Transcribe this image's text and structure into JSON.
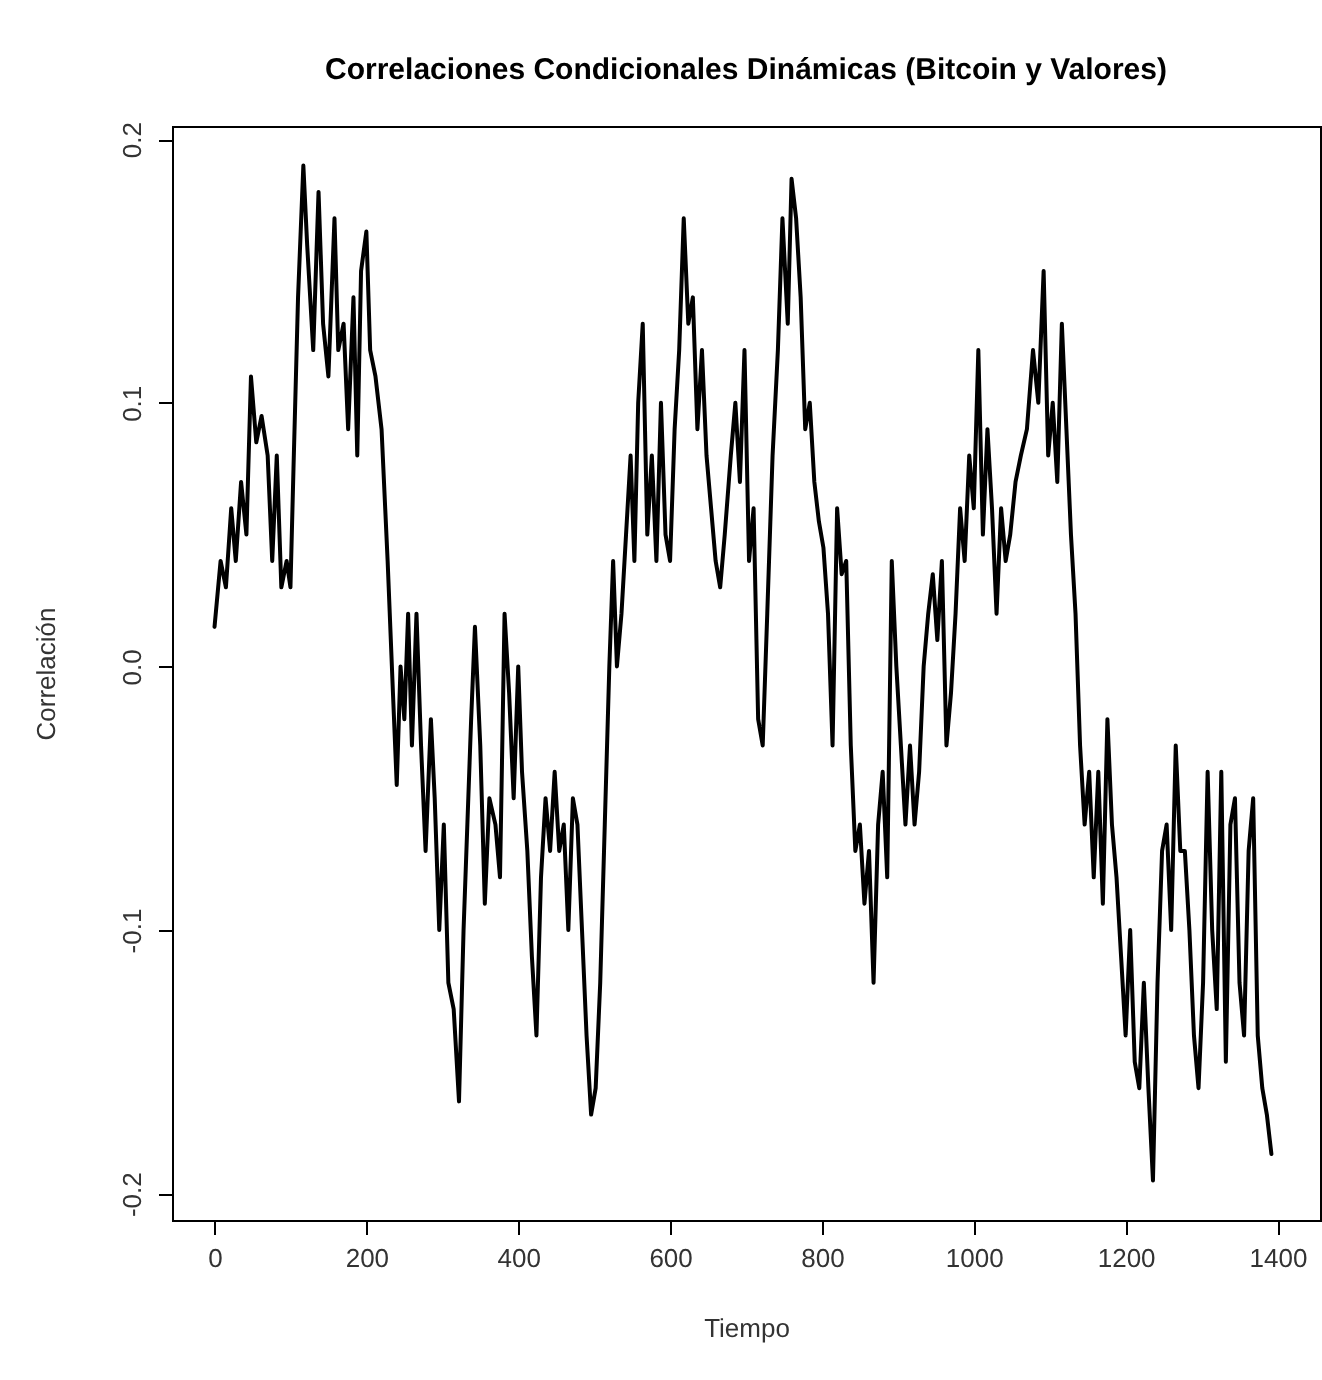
{
  "chart_data": {
    "type": "line",
    "title": "Correlaciones Condicionales Dinámicas (Bitcoin y Valores)",
    "xlabel": "Tiempo",
    "ylabel": "Correlación",
    "xlim": [
      -56,
      1456
    ],
    "xticks": [
      0,
      200,
      400,
      600,
      800,
      1000,
      1200,
      1400
    ],
    "ylim": [
      -0.21,
      0.205
    ],
    "yticks": [
      {
        "value": -0.2,
        "label": "-0.2"
      },
      {
        "value": -0.1,
        "label": "-0.1"
      },
      {
        "value": 0,
        "label": "0.0"
      },
      {
        "value": 0.1,
        "label": "0.1"
      },
      {
        "value": 0.2,
        "label": "0.2"
      }
    ],
    "marker": "none",
    "line_style": "solid",
    "x": [
      0,
      8,
      15,
      22,
      28,
      35,
      42,
      48,
      55,
      62,
      70,
      76,
      82,
      88,
      95,
      100,
      104,
      110,
      117,
      122,
      130,
      137,
      143,
      150,
      158,
      163,
      170,
      176,
      183,
      188,
      193,
      200,
      205,
      212,
      220,
      228,
      235,
      240,
      245,
      250,
      255,
      260,
      266,
      272,
      278,
      285,
      290,
      296,
      302,
      308,
      315,
      322,
      328,
      333,
      338,
      343,
      350,
      356,
      362,
      370,
      376,
      382,
      388,
      394,
      400,
      405,
      412,
      418,
      424,
      430,
      436,
      442,
      448,
      454,
      460,
      466,
      472,
      478,
      484,
      490,
      496,
      502,
      508,
      514,
      520,
      525,
      530,
      536,
      542,
      548,
      553,
      558,
      564,
      570,
      576,
      582,
      588,
      594,
      600,
      606,
      612,
      618,
      624,
      630,
      636,
      642,
      648,
      654,
      660,
      666,
      672,
      680,
      686,
      692,
      698,
      704,
      710,
      716,
      722,
      728,
      735,
      742,
      748,
      755,
      760,
      766,
      772,
      778,
      784,
      790,
      796,
      802,
      808,
      814,
      820,
      826,
      832,
      838,
      844,
      850,
      856,
      862,
      868,
      874,
      880,
      886,
      892,
      898,
      904,
      910,
      916,
      922,
      928,
      934,
      940,
      946,
      952,
      958,
      964,
      970,
      976,
      982,
      988,
      994,
      1000,
      1006,
      1012,
      1018,
      1024,
      1030,
      1036,
      1042,
      1048,
      1055,
      1062,
      1070,
      1078,
      1085,
      1092,
      1098,
      1104,
      1110,
      1116,
      1122,
      1128,
      1134,
      1140,
      1146,
      1152,
      1158,
      1164,
      1170,
      1176,
      1182,
      1188,
      1194,
      1200,
      1206,
      1212,
      1218,
      1224,
      1230,
      1236,
      1242,
      1248,
      1254,
      1260,
      1266,
      1272,
      1278,
      1284,
      1290,
      1296,
      1302,
      1308,
      1314,
      1320,
      1326,
      1332,
      1338,
      1344,
      1350,
      1356,
      1362,
      1368,
      1374,
      1380,
      1386,
      1392
    ],
    "series": [
      {
        "color": "#000000",
        "values": [
          0.015,
          0.04,
          0.03,
          0.06,
          0.04,
          0.07,
          0.05,
          0.11,
          0.085,
          0.095,
          0.08,
          0.04,
          0.08,
          0.03,
          0.04,
          0.03,
          0.075,
          0.14,
          0.19,
          0.16,
          0.12,
          0.18,
          0.13,
          0.11,
          0.17,
          0.12,
          0.13,
          0.09,
          0.14,
          0.08,
          0.15,
          0.165,
          0.12,
          0.11,
          0.09,
          0.04,
          -0.01,
          -0.045,
          0.0,
          -0.02,
          0.02,
          -0.03,
          0.02,
          -0.03,
          -0.07,
          -0.02,
          -0.05,
          -0.1,
          -0.06,
          -0.12,
          -0.13,
          -0.165,
          -0.1,
          -0.06,
          -0.02,
          0.015,
          -0.03,
          -0.09,
          -0.05,
          -0.06,
          -0.08,
          0.02,
          -0.01,
          -0.05,
          0.0,
          -0.04,
          -0.07,
          -0.11,
          -0.14,
          -0.08,
          -0.05,
          -0.07,
          -0.04,
          -0.07,
          -0.06,
          -0.1,
          -0.05,
          -0.06,
          -0.1,
          -0.14,
          -0.17,
          -0.16,
          -0.12,
          -0.06,
          0.0,
          0.04,
          0.0,
          0.02,
          0.05,
          0.08,
          0.04,
          0.1,
          0.13,
          0.05,
          0.08,
          0.04,
          0.1,
          0.05,
          0.04,
          0.09,
          0.12,
          0.17,
          0.13,
          0.14,
          0.09,
          0.12,
          0.08,
          0.06,
          0.04,
          0.03,
          0.05,
          0.08,
          0.1,
          0.07,
          0.12,
          0.04,
          0.06,
          -0.02,
          -0.03,
          0.02,
          0.08,
          0.12,
          0.17,
          0.13,
          0.185,
          0.17,
          0.14,
          0.09,
          0.1,
          0.07,
          0.055,
          0.045,
          0.02,
          -0.03,
          0.06,
          0.035,
          0.04,
          -0.03,
          -0.07,
          -0.06,
          -0.09,
          -0.07,
          -0.12,
          -0.06,
          -0.04,
          -0.08,
          0.04,
          0.0,
          -0.03,
          -0.06,
          -0.03,
          -0.06,
          -0.04,
          0.0,
          0.02,
          0.035,
          0.01,
          0.04,
          -0.03,
          -0.01,
          0.02,
          0.06,
          0.04,
          0.08,
          0.06,
          0.12,
          0.05,
          0.09,
          0.06,
          0.02,
          0.06,
          0.04,
          0.05,
          0.07,
          0.08,
          0.09,
          0.12,
          0.1,
          0.15,
          0.08,
          0.1,
          0.07,
          0.13,
          0.09,
          0.05,
          0.02,
          -0.03,
          -0.06,
          -0.04,
          -0.08,
          -0.04,
          -0.09,
          -0.02,
          -0.06,
          -0.08,
          -0.11,
          -0.14,
          -0.1,
          -0.15,
          -0.16,
          -0.12,
          -0.16,
          -0.195,
          -0.12,
          -0.07,
          -0.06,
          -0.1,
          -0.03,
          -0.07,
          -0.07,
          -0.1,
          -0.14,
          -0.16,
          -0.12,
          -0.04,
          -0.1,
          -0.13,
          -0.04,
          -0.15,
          -0.06,
          -0.05,
          -0.12,
          -0.14,
          -0.07,
          -0.05,
          -0.14,
          -0.16,
          -0.17,
          -0.185
        ]
      }
    ]
  }
}
